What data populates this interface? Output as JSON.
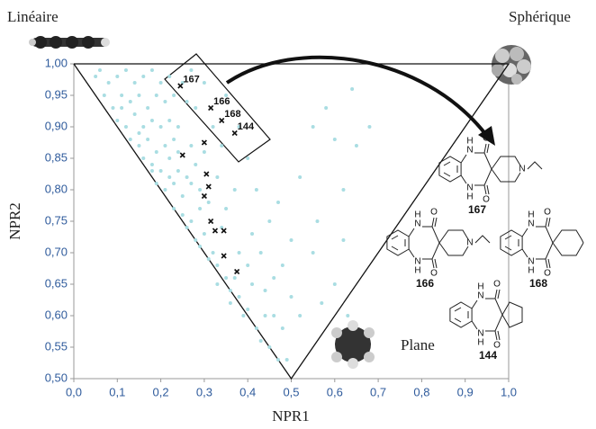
{
  "chart_data": {
    "type": "scatter",
    "xlabel": "NPR1",
    "ylabel": "NPR2",
    "corner_labels": [
      "Linéaire",
      "Sphérique",
      "Plane"
    ],
    "xlim": [
      0,
      1
    ],
    "ylim": [
      0.5,
      1
    ],
    "xticks": [
      {
        "value": 0,
        "label": "0,0"
      },
      {
        "value": 0.1,
        "label": "0,1"
      },
      {
        "value": 0.2,
        "label": "0,2"
      },
      {
        "value": 0.3,
        "label": "0,3"
      },
      {
        "value": 0.4,
        "label": "0,4"
      },
      {
        "value": 0.5,
        "label": "0,5"
      },
      {
        "value": 0.6,
        "label": "0,6"
      },
      {
        "value": 0.7,
        "label": "0,7"
      },
      {
        "value": 0.8,
        "label": "0,8"
      },
      {
        "value": 0.9,
        "label": "0,9"
      },
      {
        "value": 1,
        "label": "1,0"
      }
    ],
    "yticks": [
      {
        "value": 0.5,
        "label": "0,50"
      },
      {
        "value": 0.55,
        "label": "0,55"
      },
      {
        "value": 0.6,
        "label": "0,60"
      },
      {
        "value": 0.65,
        "label": "0,65"
      },
      {
        "value": 0.7,
        "label": "0,70"
      },
      {
        "value": 0.75,
        "label": "0,75"
      },
      {
        "value": 0.8,
        "label": "0,80"
      },
      {
        "value": 0.85,
        "label": "0,85"
      },
      {
        "value": 0.9,
        "label": "0,90"
      },
      {
        "value": 0.95,
        "label": "0,95"
      },
      {
        "value": 1,
        "label": "1,00"
      }
    ],
    "boundary": {
      "x": [
        0,
        0.5,
        1,
        0
      ],
      "y": [
        1,
        0.5,
        1,
        1
      ],
      "color": "#111"
    },
    "series": [
      {
        "color": "#a9dde2",
        "marker": "dot",
        "x": [
          0.06,
          0.08,
          0.1,
          0.12,
          0.14,
          0.16,
          0.18,
          0.2,
          0.22,
          0.07,
          0.09,
          0.11,
          0.13,
          0.15,
          0.17,
          0.19,
          0.21,
          0.23,
          0.26,
          0.1,
          0.12,
          0.14,
          0.16,
          0.18,
          0.2,
          0.22,
          0.24,
          0.13,
          0.15,
          0.17,
          0.19,
          0.21,
          0.23,
          0.27,
          0.16,
          0.18,
          0.2,
          0.22,
          0.24,
          0.28,
          0.19,
          0.21,
          0.23,
          0.25,
          0.27,
          0.29,
          0.23,
          0.25,
          0.27,
          0.29,
          0.31,
          0.26,
          0.28,
          0.3,
          0.32,
          0.29,
          0.31,
          0.33,
          0.35,
          0.33,
          0.36,
          0.38,
          0.36,
          0.39,
          0.4,
          0.42,
          0.43,
          0.45,
          0.47,
          0.44,
          0.41,
          0.38,
          0.35,
          0.33,
          0.3,
          0.32,
          0.28,
          0.3,
          0.35,
          0.38,
          0.4,
          0.42,
          0.45,
          0.43,
          0.48,
          0.5,
          0.47,
          0.52,
          0.55,
          0.58,
          0.6,
          0.62,
          0.56,
          0.6,
          0.62,
          0.64,
          0.65,
          0.68,
          0.55,
          0.5,
          0.46,
          0.41,
          0.37,
          0.34,
          0.25,
          0.27,
          0.05,
          0.11,
          0.15,
          0.18,
          0.24,
          0.26,
          0.22,
          0.34,
          0.37,
          0.4,
          0.44,
          0.48,
          0.46,
          0.52,
          0.57,
          0.63,
          0.49
        ],
        "y": [
          0.99,
          0.97,
          0.98,
          0.99,
          0.97,
          0.98,
          0.99,
          0.97,
          0.98,
          0.95,
          0.93,
          0.95,
          0.94,
          0.95,
          0.93,
          0.95,
          0.94,
          0.95,
          0.94,
          0.91,
          0.9,
          0.92,
          0.9,
          0.91,
          0.9,
          0.91,
          0.9,
          0.88,
          0.87,
          0.88,
          0.86,
          0.87,
          0.88,
          0.87,
          0.85,
          0.84,
          0.83,
          0.85,
          0.83,
          0.84,
          0.81,
          0.8,
          0.81,
          0.79,
          0.81,
          0.8,
          0.77,
          0.76,
          0.75,
          0.77,
          0.78,
          0.74,
          0.72,
          0.73,
          0.7,
          0.71,
          0.69,
          0.68,
          0.66,
          0.65,
          0.64,
          0.63,
          0.62,
          0.6,
          0.61,
          0.58,
          0.56,
          0.55,
          0.53,
          0.6,
          0.65,
          0.7,
          0.77,
          0.82,
          0.86,
          0.9,
          0.93,
          0.97,
          0.95,
          0.9,
          0.85,
          0.8,
          0.75,
          0.7,
          0.68,
          0.72,
          0.78,
          0.82,
          0.9,
          0.93,
          0.88,
          0.8,
          0.75,
          0.65,
          0.72,
          0.96,
          0.87,
          0.9,
          0.7,
          0.63,
          0.66,
          0.73,
          0.8,
          0.87,
          0.97,
          0.99,
          0.98,
          0.93,
          0.89,
          0.83,
          0.86,
          0.82,
          0.82,
          0.74,
          0.66,
          0.68,
          0.64,
          0.58,
          0.6,
          0.6,
          0.62,
          0.6,
          0.53
        ]
      },
      {
        "color": "#111",
        "marker": "x",
        "x": [
          0.245,
          0.315,
          0.34,
          0.37,
          0.3,
          0.25,
          0.305,
          0.31,
          0.3,
          0.315,
          0.325,
          0.345,
          0.345,
          0.375
        ],
        "y": [
          0.965,
          0.93,
          0.91,
          0.89,
          0.875,
          0.855,
          0.825,
          0.805,
          0.79,
          0.75,
          0.735,
          0.735,
          0.695,
          0.67
        ],
        "labels": [
          "167",
          "166",
          "168",
          "144",
          null,
          null,
          null,
          null,
          null,
          null,
          null,
          null,
          null,
          null
        ]
      }
    ],
    "structures": [
      {
        "label": "167",
        "atoms": [
          "O",
          "H",
          "N",
          "N",
          "H",
          "O",
          "N"
        ]
      },
      {
        "label": "166",
        "atoms": [
          "O",
          "H",
          "N",
          "N",
          "H",
          "O",
          "N"
        ]
      },
      {
        "label": "168",
        "atoms": [
          "O",
          "H",
          "N",
          "N",
          "H",
          "O"
        ]
      },
      {
        "label": "144",
        "atoms": [
          "O",
          "H",
          "N",
          "N",
          "H",
          "O"
        ]
      }
    ]
  }
}
